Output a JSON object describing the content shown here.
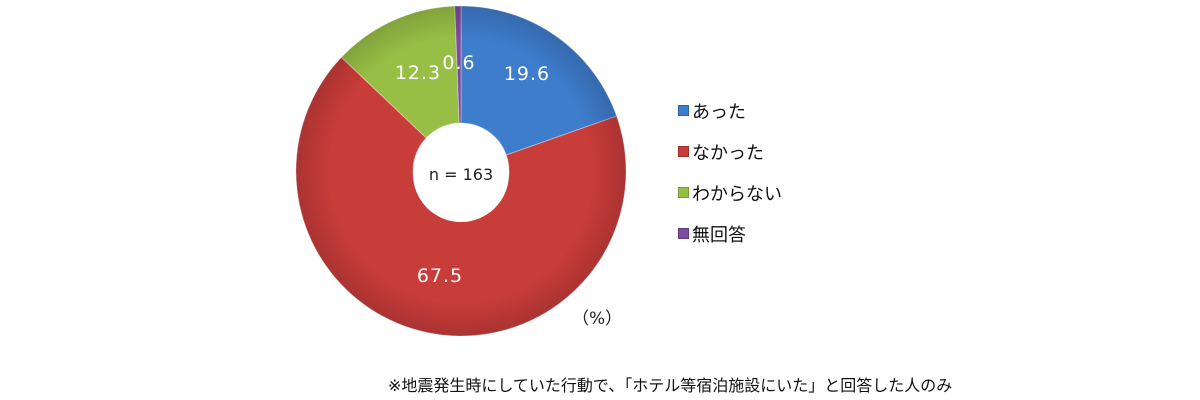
{
  "chart_data": {
    "type": "pie",
    "donut": true,
    "categories": [
      "あった",
      "なかった",
      "わからない",
      "無回答"
    ],
    "values": [
      19.6,
      67.5,
      12.3,
      0.6
    ],
    "colors": [
      "#3e7ccc",
      "#c83c3a",
      "#98bf45",
      "#7a4c9e"
    ],
    "center_label": "n = 163",
    "unit": "（%）",
    "legend_position": "right",
    "footnote": "※地震発生時にしていた行動で、「ホテル等宿泊施設にいた」と回答した人のみ"
  }
}
